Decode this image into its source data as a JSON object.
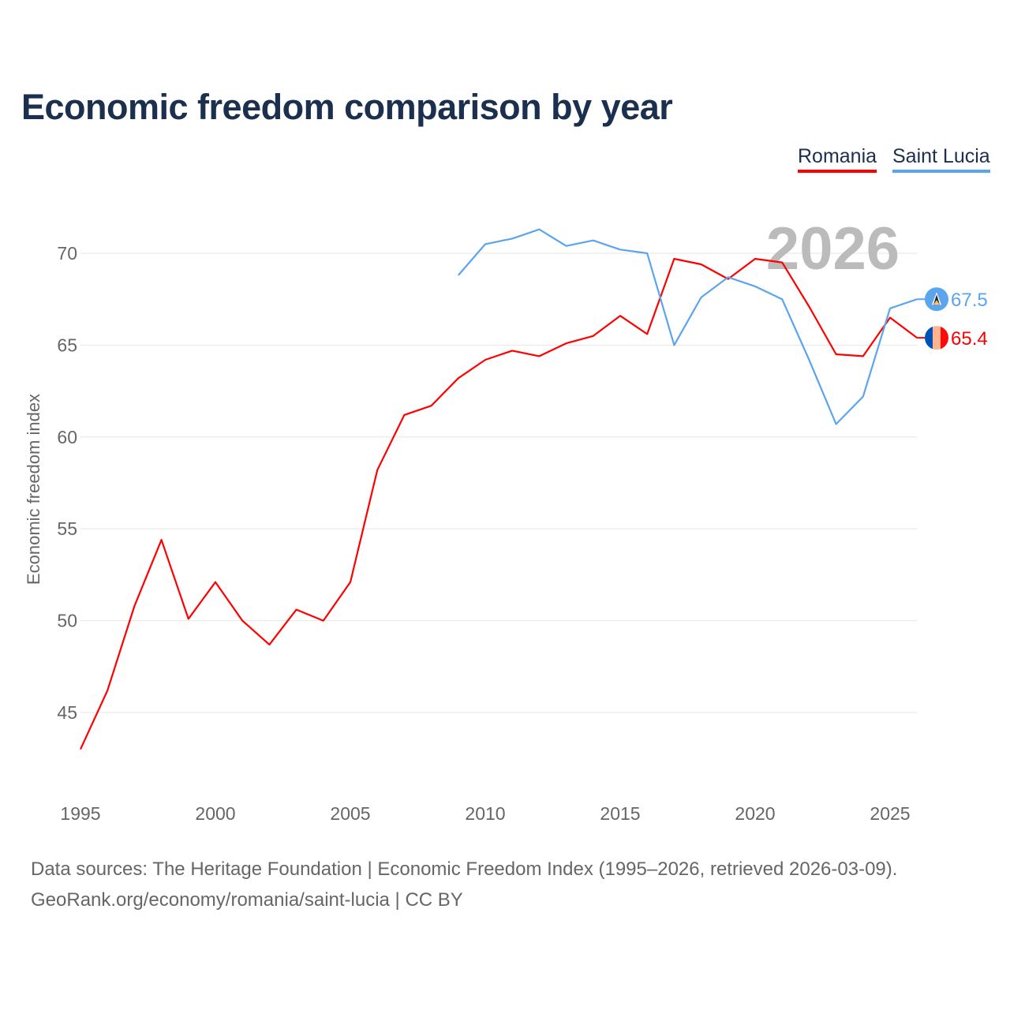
{
  "chart_data": {
    "type": "line",
    "title": "Economic freedom comparison by year",
    "xlabel": "",
    "ylabel": "Economic freedom index",
    "xlim": [
      1995,
      2026
    ],
    "ylim": [
      41,
      73
    ],
    "x_ticks": [
      1995,
      2000,
      2005,
      2010,
      2015,
      2020,
      2025
    ],
    "y_ticks": [
      45,
      50,
      55,
      60,
      65,
      70
    ],
    "grid": true,
    "legend_position": "top-right",
    "watermark_year": "2026",
    "series": [
      {
        "name": "Romania",
        "color": "#ff0000",
        "end_label": "65.4",
        "flag": "romania-flag",
        "x": [
          1995,
          1996,
          1997,
          1998,
          1999,
          2000,
          2001,
          2002,
          2003,
          2004,
          2005,
          2006,
          2007,
          2008,
          2009,
          2010,
          2011,
          2012,
          2013,
          2014,
          2015,
          2016,
          2017,
          2018,
          2019,
          2020,
          2021,
          2022,
          2023,
          2024,
          2025,
          2026
        ],
        "values": [
          43.0,
          46.2,
          50.8,
          54.4,
          50.1,
          52.1,
          50.0,
          48.7,
          50.6,
          50.0,
          52.1,
          58.2,
          61.2,
          61.7,
          63.2,
          64.2,
          64.7,
          64.4,
          65.1,
          65.5,
          66.6,
          65.6,
          69.7,
          69.4,
          68.6,
          69.7,
          69.5,
          67.1,
          64.5,
          64.4,
          66.5,
          65.4
        ]
      },
      {
        "name": "Saint Lucia",
        "color": "#5ba4ee",
        "end_label": "67.5",
        "flag": "saint-lucia-flag",
        "x": [
          2009,
          2010,
          2011,
          2012,
          2013,
          2014,
          2015,
          2016,
          2017,
          2018,
          2019,
          2020,
          2021,
          2022,
          2023,
          2024,
          2025,
          2026
        ],
        "values": [
          68.8,
          70.5,
          70.8,
          71.3,
          70.4,
          70.7,
          70.2,
          70.0,
          65.0,
          67.6,
          68.7,
          68.2,
          67.5,
          64.2,
          60.7,
          62.2,
          67.0,
          67.5
        ]
      }
    ]
  },
  "footer": {
    "source_line": "Data sources: The Heritage Foundation | Economic Freedom Index (1995–2026, retrieved 2026-03-09).",
    "credit_line": "GeoRank.org/economy/romania/saint-lucia | CC BY"
  }
}
